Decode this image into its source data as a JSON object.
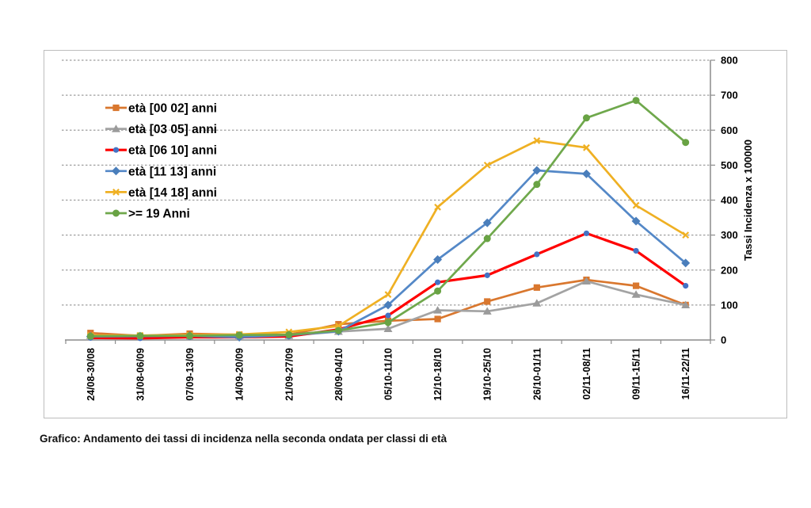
{
  "page": {
    "caption": "Grafico: Andamento dei tassi di incidenza nella seconda ondata per classi di età"
  },
  "chart_data": {
    "type": "line",
    "title": "",
    "xlabel": "",
    "ylabel": "Tassi Incidenza x 100000",
    "ylim": [
      0,
      800
    ],
    "ytick_step": 100,
    "grid": "horizontal-dashed",
    "legend_position": "inside-top-left",
    "categories": [
      "24/08-30/08",
      "31/08-06/09",
      "07/09-13/09",
      "14/09-20/09",
      "21/09-27/09",
      "28/09-04/10",
      "05/10-11/10",
      "12/10-18/10",
      "19/10-25/10",
      "26/10-01/11",
      "02/11-08/11",
      "09/11-15/11",
      "16/11-22/11"
    ],
    "series": [
      {
        "name": "età [00 02] anni",
        "color": "#D9772E",
        "marker": "square",
        "marker_color": "#D9772E",
        "values": [
          20,
          12,
          18,
          15,
          15,
          45,
          55,
          60,
          110,
          150,
          172,
          155,
          100
        ]
      },
      {
        "name": "età [03 05] anni",
        "color": "#A3A3A3",
        "marker": "triangle",
        "marker_color": "#9B9B9B",
        "values": [
          12,
          10,
          8,
          12,
          12,
          24,
          32,
          85,
          82,
          105,
          168,
          130,
          100
        ]
      },
      {
        "name": "età [06 10] anni",
        "color": "#FF0000",
        "marker": "circle-small",
        "marker_color": "#4472C4",
        "values": [
          6,
          5,
          8,
          8,
          10,
          30,
          70,
          165,
          185,
          245,
          305,
          255,
          155
        ]
      },
      {
        "name": "età [11 13] anni",
        "color": "#5488C7",
        "marker": "diamond",
        "marker_color": "#4A7EBB",
        "values": [
          10,
          11,
          12,
          8,
          14,
          25,
          100,
          230,
          335,
          485,
          475,
          340,
          220
        ]
      },
      {
        "name": "età [14 18] anni",
        "color": "#EFB023",
        "marker": "x",
        "marker_color": "#EFB023",
        "values": [
          13,
          13,
          14,
          16,
          23,
          40,
          130,
          380,
          500,
          570,
          550,
          385,
          300
        ]
      },
      {
        "name": ">= 19 Anni",
        "color": "#6FA84C",
        "marker": "circle",
        "marker_color": "#69A344",
        "values": [
          11,
          12,
          12,
          14,
          15,
          27,
          50,
          140,
          290,
          445,
          635,
          685,
          565
        ]
      }
    ]
  }
}
